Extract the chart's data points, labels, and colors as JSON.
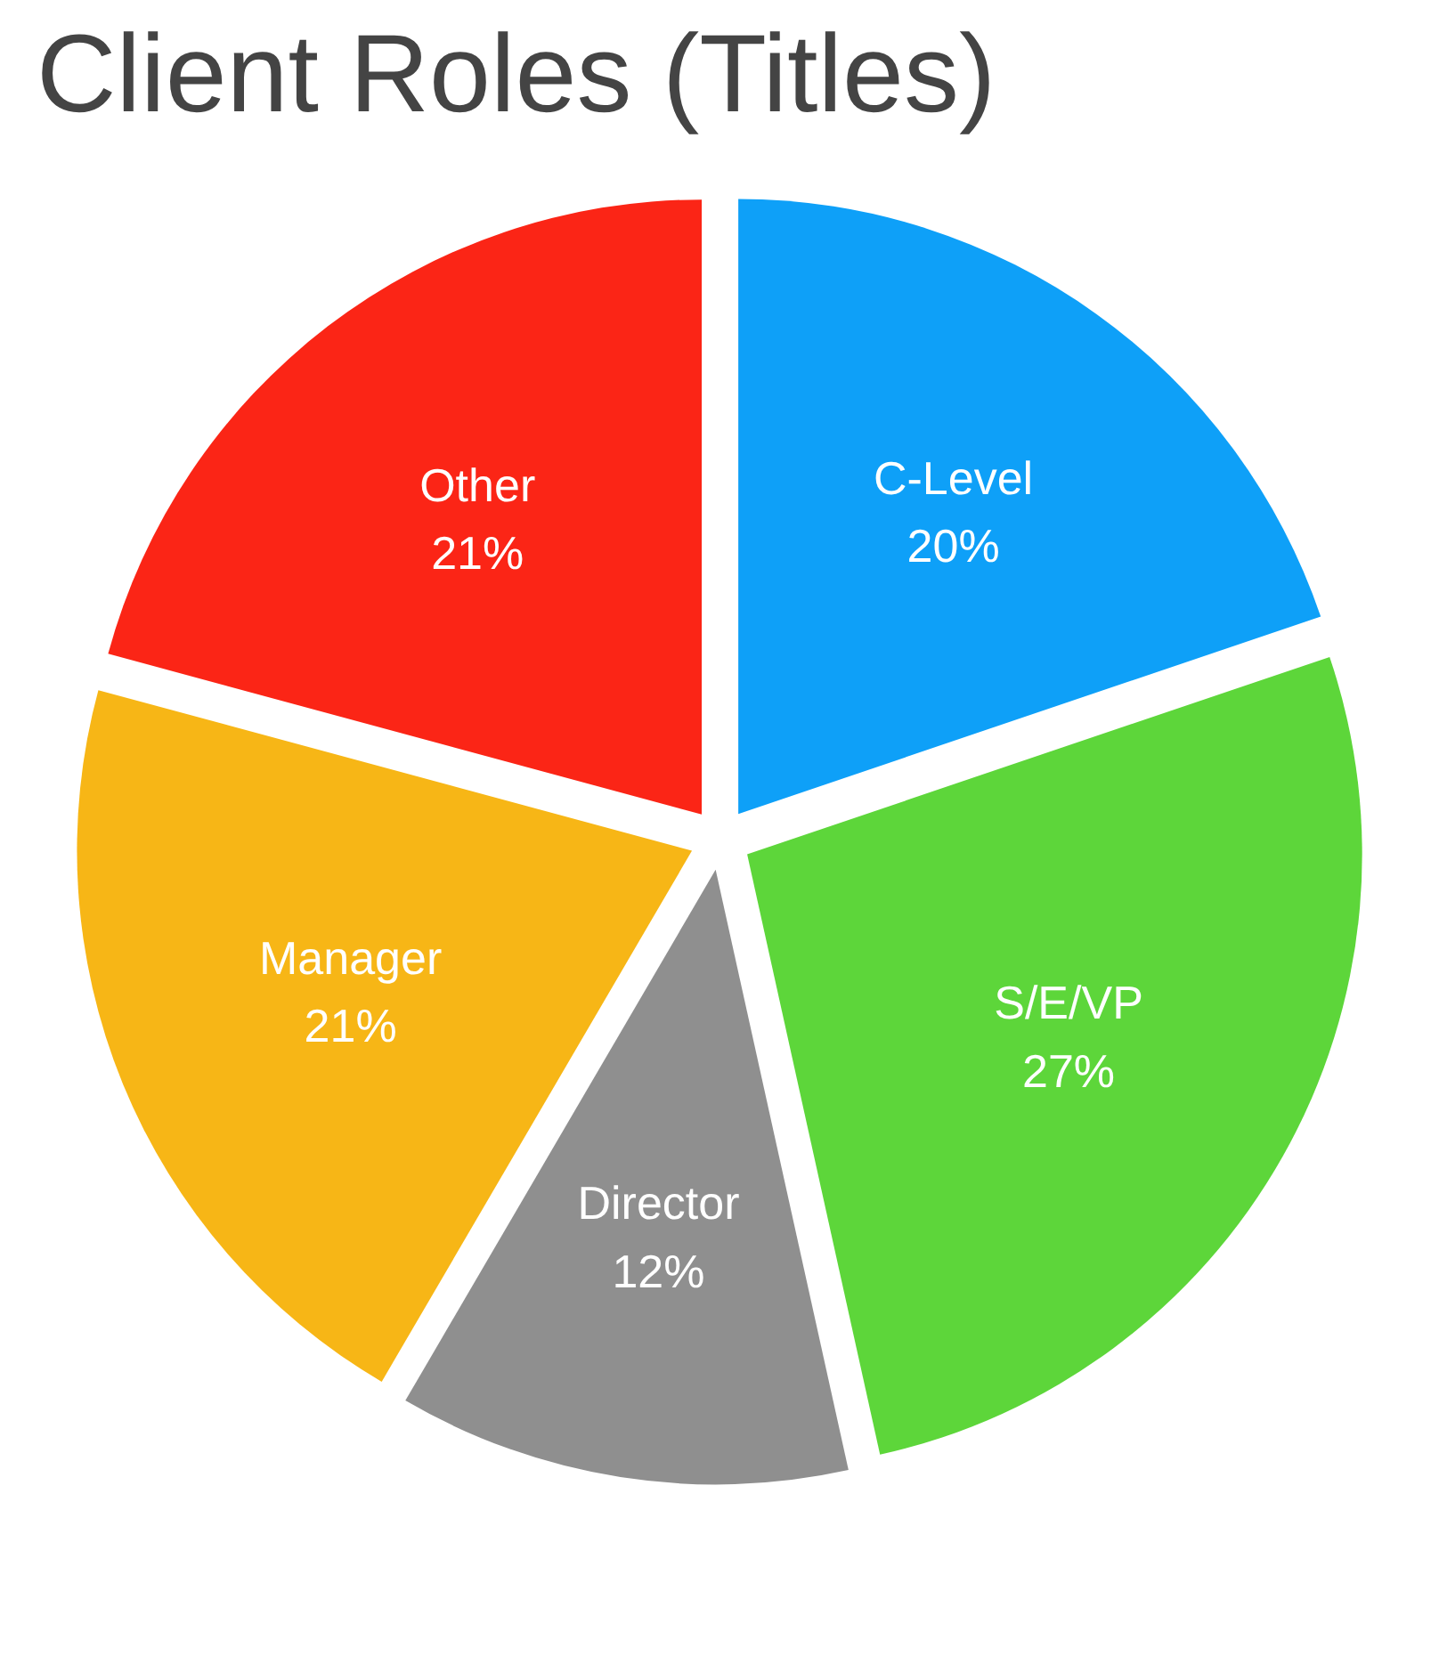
{
  "chart_data": {
    "type": "pie",
    "title": "Client Roles (Titles)",
    "categories": [
      "C-Level",
      "S/E/VP",
      "Director",
      "Manager",
      "Other"
    ],
    "values": [
      20,
      27,
      12,
      21,
      21
    ],
    "value_labels": [
      "20%",
      "27%",
      "12%",
      "21%",
      "21%"
    ],
    "colors": [
      "#0ea0f8",
      "#5dd63a",
      "#8f8f8f",
      "#f7b616",
      "#fb2516"
    ]
  }
}
